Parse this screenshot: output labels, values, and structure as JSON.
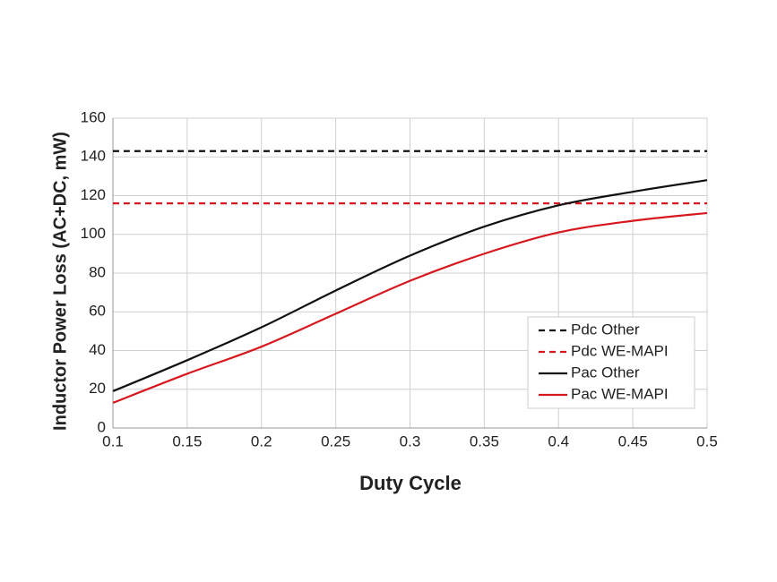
{
  "chart_data": {
    "type": "line",
    "x_label": "Duty Cycle",
    "y_label": "Inductor Power Loss (AC+DC, mW)",
    "x": [
      0.1,
      0.15,
      0.2,
      0.25,
      0.3,
      0.35,
      0.4,
      0.45,
      0.5
    ],
    "series": [
      {
        "name": "Pdc Other",
        "color": "#111111",
        "style": "dashed",
        "values": [
          143,
          143,
          143,
          143,
          143,
          143,
          143,
          143,
          143
        ]
      },
      {
        "name": "Pdc WE-MAPI",
        "color": "#d7191f",
        "style": "dashed",
        "values": [
          116,
          116,
          116,
          116,
          116,
          116,
          116,
          116,
          116
        ]
      },
      {
        "name": "Pac Other",
        "color": "#111111",
        "style": "solid",
        "values": [
          19,
          35,
          52,
          71,
          89,
          104,
          115,
          122,
          128
        ]
      },
      {
        "name": "Pac WE-MAPI",
        "color": "#d7191f",
        "style": "solid",
        "values": [
          13,
          28,
          42,
          59,
          76,
          90,
          101,
          107,
          111
        ]
      }
    ],
    "xlim": [
      0.1,
      0.5
    ],
    "xticks": [
      0.1,
      0.15,
      0.2,
      0.25,
      0.3,
      0.35,
      0.4,
      0.45,
      0.5
    ],
    "ylim": [
      0,
      160
    ],
    "yticks": [
      0,
      20,
      40,
      60,
      80,
      100,
      120,
      140,
      160
    ],
    "grid": true,
    "legend": "lower right"
  }
}
